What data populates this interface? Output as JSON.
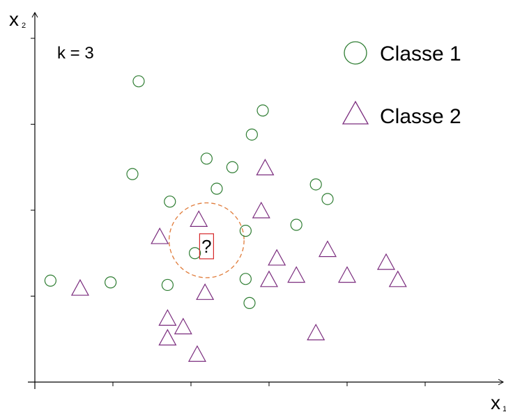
{
  "chart_data": {
    "type": "scatter",
    "title": "",
    "xlabel": "x",
    "xlabel_sub": "1",
    "ylabel": "x",
    "ylabel_sub": "2",
    "xlim": [
      0,
      6
    ],
    "ylim": [
      0,
      4.3
    ],
    "grid": false,
    "legend": "top-right",
    "annotation": "k = 3",
    "query": {
      "label": "?",
      "x": 2.2,
      "y": 1.58,
      "color": "#d62728"
    },
    "neighborhood": {
      "center": [
        2.2,
        1.65
      ],
      "radius": 0.48,
      "color": "#e07b39"
    },
    "series": [
      {
        "name": "Classe 1",
        "marker": "circle",
        "color": "#2e7d32",
        "points": [
          [
            0.2,
            1.18
          ],
          [
            0.97,
            1.16
          ],
          [
            1.33,
            3.5
          ],
          [
            1.25,
            2.42
          ],
          [
            1.73,
            2.1
          ],
          [
            2.2,
            2.6
          ],
          [
            2.33,
            2.25
          ],
          [
            2.53,
            2.5
          ],
          [
            2.78,
            2.88
          ],
          [
            2.92,
            3.16
          ],
          [
            2.7,
            1.76
          ],
          [
            2.05,
            1.5
          ],
          [
            1.7,
            1.13
          ],
          [
            2.7,
            1.2
          ],
          [
            2.75,
            0.92
          ],
          [
            3.35,
            1.83
          ],
          [
            3.6,
            2.3
          ],
          [
            3.75,
            2.13
          ]
        ]
      },
      {
        "name": "Classe 2",
        "marker": "triangle",
        "color": "#7b2d7e",
        "points": [
          [
            0.58,
            1.1
          ],
          [
            1.6,
            1.7
          ],
          [
            2.1,
            1.9
          ],
          [
            2.95,
            2.5
          ],
          [
            2.9,
            2.0
          ],
          [
            3.1,
            1.45
          ],
          [
            3.75,
            1.55
          ],
          [
            3.35,
            1.25
          ],
          [
            3.0,
            1.2
          ],
          [
            4.0,
            1.25
          ],
          [
            4.5,
            1.4
          ],
          [
            4.65,
            1.2
          ],
          [
            2.18,
            1.05
          ],
          [
            1.7,
            0.75
          ],
          [
            1.9,
            0.65
          ],
          [
            1.7,
            0.52
          ],
          [
            2.08,
            0.33
          ],
          [
            3.6,
            0.58
          ]
        ]
      }
    ]
  }
}
